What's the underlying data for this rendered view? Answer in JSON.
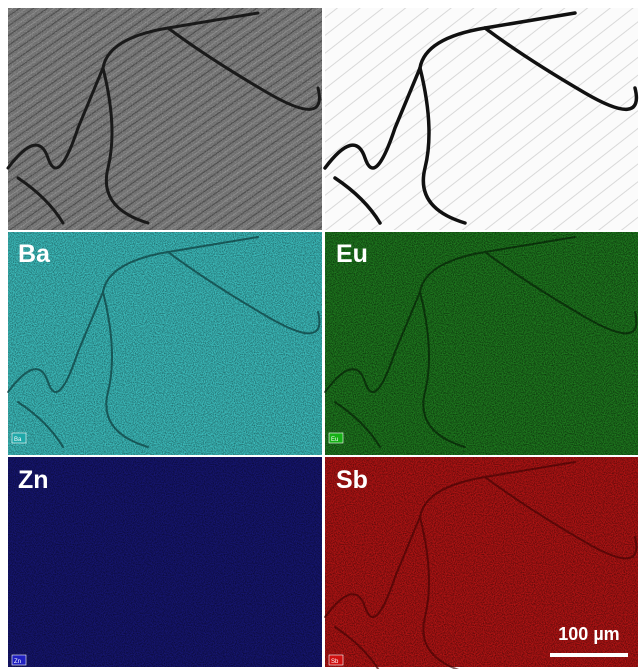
{
  "panels": [
    {
      "label": "Ba",
      "tag": "Ba"
    },
    {
      "label": "Eu",
      "tag": "Eu"
    },
    {
      "label": "Zn",
      "tag": "Zn"
    },
    {
      "label": "Sb",
      "tag": "Sb"
    }
  ],
  "scale_bar": {
    "label": "100 µm"
  }
}
